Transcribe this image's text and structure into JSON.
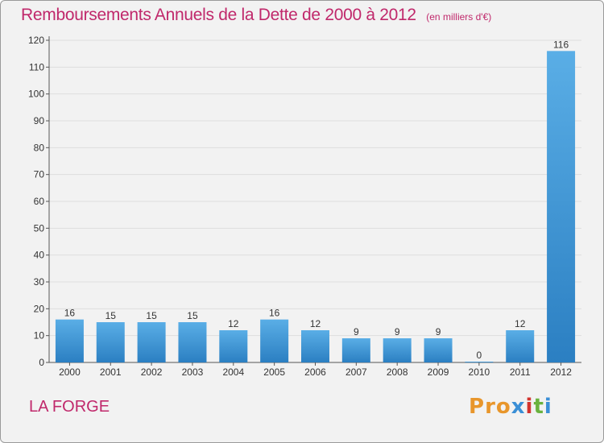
{
  "header": {
    "title": "Remboursements Annuels de la Dette de 2000 à 2012",
    "unit": "(en milliers d'€)"
  },
  "footer": {
    "place": "LA FORGE",
    "logo": "Proxiti"
  },
  "colors": {
    "accent": "#c0286b",
    "bar_top": "#5aaee6",
    "bar_bottom": "#2b7fc2",
    "plot_background": "#f2f2f2",
    "grid": "#dddddd",
    "axis": "#555555"
  },
  "chart_data": {
    "type": "bar",
    "categories": [
      "2000",
      "2001",
      "2002",
      "2003",
      "2004",
      "2005",
      "2006",
      "2007",
      "2008",
      "2009",
      "2010",
      "2011",
      "2012"
    ],
    "values": [
      16,
      15,
      15,
      15,
      12,
      16,
      12,
      9,
      9,
      9,
      0,
      12,
      116
    ],
    "data_labels": [
      "16",
      "15",
      "15",
      "15",
      "12",
      "16",
      "12",
      "9",
      "9",
      "9",
      "0",
      "12",
      "116"
    ],
    "ylim": [
      0,
      120
    ],
    "yticks": [
      0,
      10,
      20,
      30,
      40,
      50,
      60,
      70,
      80,
      90,
      100,
      110,
      120
    ],
    "grid": true,
    "legend": "none",
    "title": "Remboursements Annuels de la Dette de 2000 à 2012",
    "xlabel": "",
    "ylabel": ""
  }
}
